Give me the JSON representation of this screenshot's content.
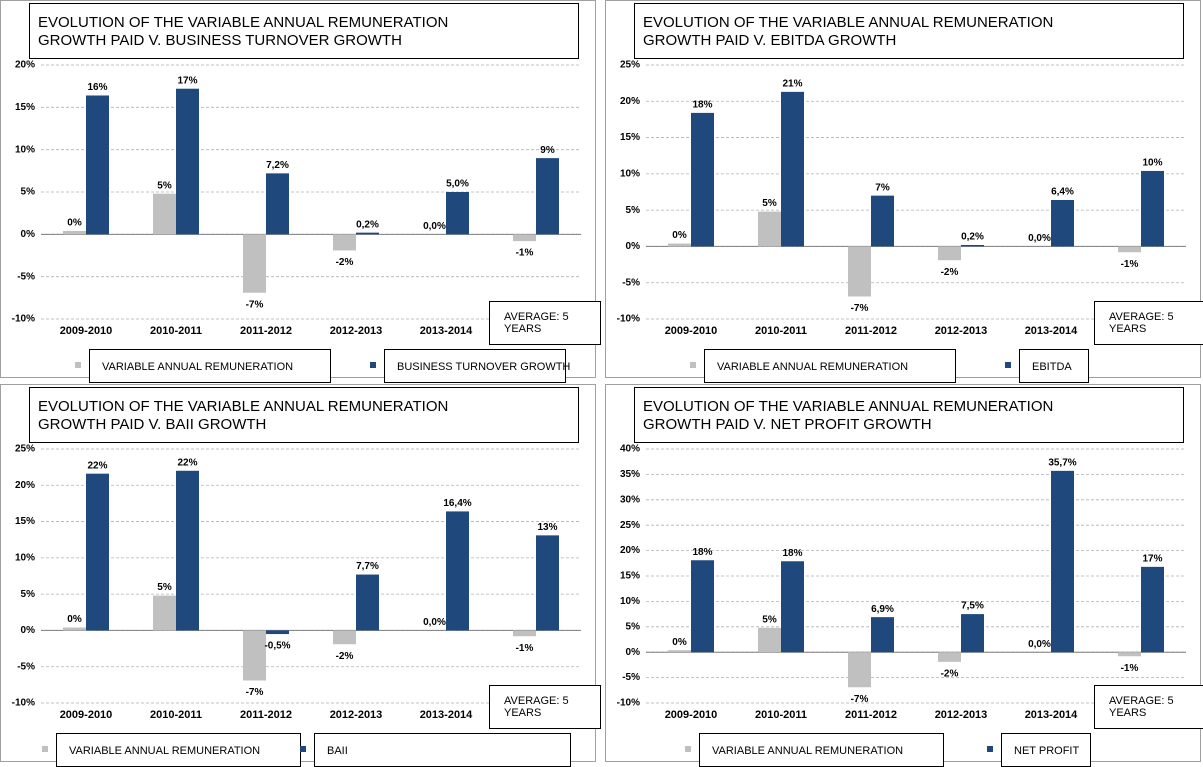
{
  "chart_data": [
    {
      "type": "bar",
      "title": "EVOLUTION OF THE VARIABLE ANNUAL REMUNERATION GROWTH PAID V. BUSINESS TURNOVER GROWTH",
      "categories": [
        "2009-2010",
        "2010-2011",
        "2011-2012",
        "2012-2013",
        "2013-2014",
        "AVERAGE: 5 YEARS"
      ],
      "series": [
        {
          "name": "VARIABLE ANNUAL REMUNERATION",
          "color": "#c0c0c0",
          "values": [
            0.4,
            4.8,
            -6.9,
            -1.9,
            0,
            -0.8
          ],
          "value_labels": [
            "0%",
            "5%",
            "-7%",
            "-2%",
            "0,0%",
            "-1%"
          ]
        },
        {
          "name": "BUSINESS TURNOVER GROWTH",
          "color": "#1f497d",
          "values": [
            16.4,
            17.2,
            7.2,
            0.2,
            5.0,
            9.0
          ],
          "value_labels": [
            "16%",
            "17%",
            "7,2%",
            "0,2%",
            "5,0%",
            "9%"
          ]
        }
      ],
      "ylim": [
        -10,
        20
      ],
      "yticks": [
        {
          "value": -10,
          "label": "-10%"
        },
        {
          "value": -5,
          "label": "-5%"
        },
        {
          "value": 0,
          "label": "0%"
        },
        {
          "value": 5,
          "label": "5%"
        },
        {
          "value": 10,
          "label": "10%"
        },
        {
          "value": 15,
          "label": "15%"
        },
        {
          "value": 20,
          "label": "20%"
        }
      ],
      "grid": true
    },
    {
      "type": "bar",
      "title": "EVOLUTION OF THE VARIABLE ANNUAL REMUNERATION GROWTH PAID V. EBITDA GROWTH",
      "categories": [
        "2009-2010",
        "2010-2011",
        "2011-2012",
        "2012-2013",
        "2013-2014",
        "AVERAGE: 5 YEARS"
      ],
      "series": [
        {
          "name": "VARIABLE ANNUAL REMUNERATION",
          "color": "#c0c0c0",
          "values": [
            0.4,
            4.8,
            -6.9,
            -1.9,
            0,
            -0.8
          ],
          "value_labels": [
            "0%",
            "5%",
            "-7%",
            "-2%",
            "0,0%",
            "-1%"
          ]
        },
        {
          "name": "EBITDA",
          "color": "#1f497d",
          "values": [
            18.4,
            21.3,
            7.0,
            0.2,
            6.4,
            10.4
          ],
          "value_labels": [
            "18%",
            "21%",
            "7%",
            "0,2%",
            "6,4%",
            "10%"
          ]
        }
      ],
      "ylim": [
        -10,
        25
      ],
      "yticks": [
        {
          "value": -10,
          "label": "-10%"
        },
        {
          "value": -5,
          "label": "-5%"
        },
        {
          "value": 0,
          "label": "0%"
        },
        {
          "value": 5,
          "label": "5%"
        },
        {
          "value": 10,
          "label": "10%"
        },
        {
          "value": 15,
          "label": "15%"
        },
        {
          "value": 20,
          "label": "20%"
        },
        {
          "value": 25,
          "label": "25%"
        }
      ],
      "grid": true
    },
    {
      "type": "bar",
      "title": "EVOLUTION OF THE VARIABLE ANNUAL REMUNERATION GROWTH PAID V. BAII GROWTH",
      "categories": [
        "2009-2010",
        "2010-2011",
        "2011-2012",
        "2012-2013",
        "2013-2014",
        "AVERAGE: 5 YEARS"
      ],
      "series": [
        {
          "name": "VARIABLE ANNUAL REMUNERATION",
          "color": "#c0c0c0",
          "values": [
            0.4,
            4.8,
            -6.9,
            -1.9,
            0,
            -0.8
          ],
          "value_labels": [
            "0%",
            "5%",
            "-7%",
            "-2%",
            "0,0%",
            "-1%"
          ]
        },
        {
          "name": "BAII",
          "color": "#1f497d",
          "values": [
            21.6,
            22.0,
            -0.5,
            7.7,
            16.4,
            13.1
          ],
          "value_labels": [
            "22%",
            "22%",
            "-0,5%",
            "7,7%",
            "16,4%",
            "13%"
          ]
        }
      ],
      "ylim": [
        -10,
        25
      ],
      "yticks": [
        {
          "value": -10,
          "label": "-10%"
        },
        {
          "value": -5,
          "label": "-5%"
        },
        {
          "value": 0,
          "label": "0%"
        },
        {
          "value": 5,
          "label": "5%"
        },
        {
          "value": 10,
          "label": "10%"
        },
        {
          "value": 15,
          "label": "15%"
        },
        {
          "value": 20,
          "label": "20%"
        },
        {
          "value": 25,
          "label": "25%"
        }
      ],
      "grid": true
    },
    {
      "type": "bar",
      "title": "EVOLUTION OF THE VARIABLE ANNUAL REMUNERATION GROWTH PAID V. NET PROFIT GROWTH",
      "categories": [
        "2009-2010",
        "2010-2011",
        "2011-2012",
        "2012-2013",
        "2013-2014",
        "AVERAGE: 5 YEARS"
      ],
      "series": [
        {
          "name": "VARIABLE ANNUAL REMUNERATION",
          "color": "#c0c0c0",
          "values": [
            0.4,
            4.8,
            -6.9,
            -1.9,
            0,
            -0.8
          ],
          "value_labels": [
            "0%",
            "5%",
            "-7%",
            "-2%",
            "0,0%",
            "-1%"
          ]
        },
        {
          "name": "NET PROFIT",
          "color": "#1f497d",
          "values": [
            18.1,
            17.9,
            6.9,
            7.5,
            35.7,
            16.8
          ],
          "value_labels": [
            "18%",
            "18%",
            "6,9%",
            "7,5%",
            "35,7%",
            "17%"
          ]
        }
      ],
      "ylim": [
        -10,
        40
      ],
      "yticks": [
        {
          "value": -10,
          "label": "-10%"
        },
        {
          "value": -5,
          "label": "-5%"
        },
        {
          "value": 0,
          "label": "0%"
        },
        {
          "value": 5,
          "label": "5%"
        },
        {
          "value": 10,
          "label": "10%"
        },
        {
          "value": 15,
          "label": "15%"
        },
        {
          "value": 20,
          "label": "20%"
        },
        {
          "value": 25,
          "label": "25%"
        },
        {
          "value": 30,
          "label": "30%"
        },
        {
          "value": 35,
          "label": "35%"
        },
        {
          "value": 40,
          "label": "40%"
        }
      ],
      "grid": true
    }
  ]
}
